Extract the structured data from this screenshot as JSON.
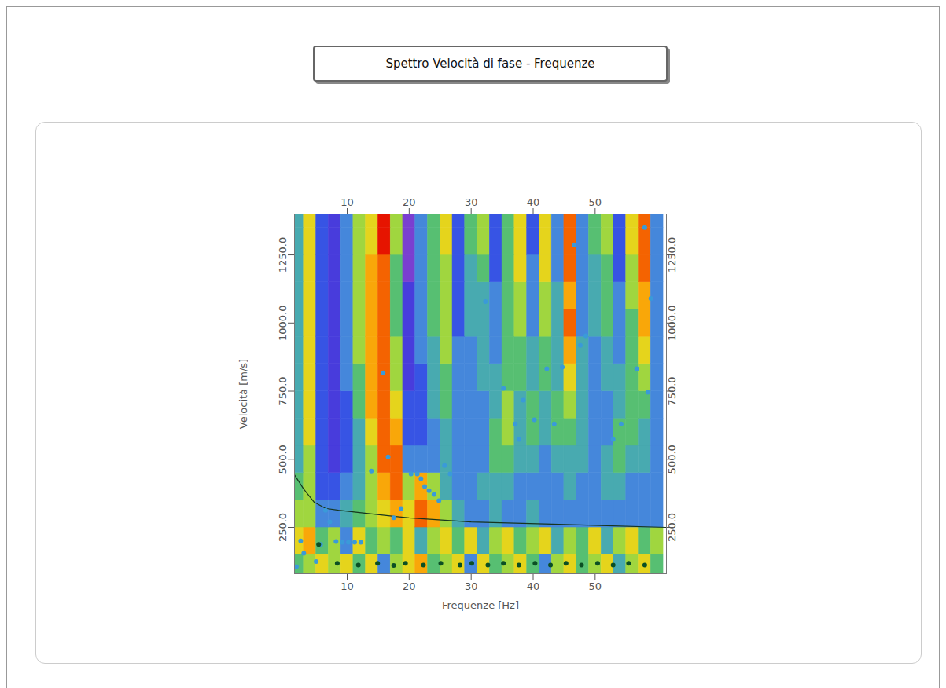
{
  "chart_data": {
    "type": "heatmap",
    "title": "Spettro Velocità di fase - Frequenze",
    "x_label": "Frequenze [Hz]",
    "y_label": "Velocità [m/s]",
    "xlim": [
      1.5,
      61.5
    ],
    "ylim": [
      80,
      1400
    ],
    "xticks": [
      10,
      20,
      30,
      40,
      50
    ],
    "yticks": [
      {
        "value": 250,
        "label": "250.0"
      },
      {
        "value": 500,
        "label": "500.0"
      },
      {
        "value": 750,
        "label": "750.0"
      },
      {
        "value": 1000,
        "label": "1000.0"
      },
      {
        "value": 1250,
        "label": "1250.0"
      }
    ],
    "cells": {
      "colors": [
        "#7a3fd0",
        "#1e32e6",
        "#5aa6e6",
        "#2fb86a",
        "#f2f21e",
        "#ff9a00",
        "#e61400"
      ],
      "frequencies": [
        2,
        4,
        6,
        8,
        10,
        12,
        14,
        16,
        18,
        20,
        22,
        24,
        26,
        28,
        30,
        32,
        34,
        36,
        38,
        40,
        42,
        44,
        46,
        48,
        50,
        52,
        54,
        56,
        58,
        60
      ],
      "velocities": [
        100,
        200,
        300,
        400,
        500,
        600,
        700,
        800,
        900,
        1000,
        1100,
        1200,
        1300,
        1400
      ],
      "values": [
        [
          5,
          6,
          7,
          6,
          7,
          5,
          7,
          3,
          6,
          7,
          8,
          5,
          6,
          7,
          3,
          7,
          5,
          6,
          7,
          5,
          3,
          6,
          7,
          5,
          6,
          7,
          4,
          6,
          7,
          5
        ],
        [
          7,
          8,
          5,
          6,
          3,
          7,
          5,
          6,
          5,
          7,
          4,
          6,
          7,
          5,
          7,
          4,
          6,
          7,
          5,
          6,
          7,
          4,
          6,
          5,
          7,
          4,
          6,
          7,
          5,
          6
        ],
        [
          6,
          6,
          3,
          3,
          4,
          5,
          6,
          7,
          8,
          7,
          9,
          8,
          6,
          4,
          3,
          3,
          4,
          3,
          3,
          4,
          3,
          3,
          3,
          3,
          3,
          3,
          3,
          3,
          3,
          3
        ],
        [
          5,
          6,
          2,
          2,
          3,
          4,
          6,
          8,
          9,
          6,
          8,
          6,
          4,
          3,
          3,
          4,
          4,
          4,
          3,
          3,
          3,
          3,
          4,
          3,
          3,
          4,
          4,
          3,
          3,
          3
        ],
        [
          4,
          6,
          2,
          1,
          2,
          4,
          6,
          9,
          9,
          3,
          3,
          3,
          4,
          3,
          3,
          3,
          5,
          5,
          4,
          4,
          3,
          4,
          4,
          4,
          3,
          4,
          5,
          4,
          4,
          3
        ],
        [
          4,
          7,
          2,
          1,
          2,
          4,
          7,
          9,
          8,
          2,
          2,
          3,
          4,
          3,
          3,
          3,
          5,
          6,
          4,
          5,
          4,
          5,
          5,
          4,
          3,
          3,
          5,
          5,
          4,
          3
        ],
        [
          4,
          7,
          2,
          1,
          2,
          5,
          8,
          9,
          7,
          2,
          2,
          4,
          5,
          3,
          3,
          3,
          4,
          6,
          4,
          5,
          4,
          5,
          6,
          4,
          3,
          3,
          4,
          5,
          5,
          3
        ],
        [
          4,
          7,
          2,
          1,
          3,
          5,
          8,
          9,
          6,
          1,
          2,
          4,
          5,
          3,
          3,
          4,
          4,
          5,
          5,
          4,
          5,
          4,
          7,
          4,
          3,
          4,
          4,
          5,
          6,
          3
        ],
        [
          4,
          7,
          2,
          1,
          3,
          6,
          8,
          9,
          6,
          1,
          3,
          4,
          6,
          3,
          3,
          4,
          3,
          5,
          5,
          4,
          5,
          4,
          8,
          4,
          3,
          4,
          3,
          5,
          7,
          3
        ],
        [
          4,
          7,
          2,
          1,
          3,
          6,
          8,
          9,
          5,
          1,
          3,
          5,
          6,
          2,
          4,
          4,
          3,
          5,
          6,
          3,
          6,
          4,
          9,
          3,
          4,
          5,
          3,
          5,
          8,
          3
        ],
        [
          4,
          7,
          2,
          1,
          3,
          6,
          8,
          9,
          5,
          1,
          3,
          5,
          6,
          2,
          4,
          4,
          3,
          5,
          6,
          3,
          6,
          4,
          8,
          3,
          4,
          5,
          3,
          6,
          8,
          3
        ],
        [
          4,
          7,
          2,
          1,
          3,
          6,
          8,
          9,
          5,
          0,
          3,
          5,
          6,
          2,
          4,
          5,
          2,
          5,
          7,
          3,
          7,
          3,
          9,
          3,
          4,
          5,
          2,
          6,
          9,
          3
        ],
        [
          4,
          7,
          2,
          1,
          3,
          6,
          7,
          10,
          6,
          0,
          3,
          5,
          7,
          2,
          5,
          6,
          2,
          5,
          7,
          2,
          7,
          3,
          9,
          3,
          5,
          6,
          2,
          7,
          9,
          3
        ],
        [
          4,
          7,
          2,
          1,
          3,
          6,
          7,
          10,
          6,
          0,
          3,
          5,
          7,
          2,
          5,
          6,
          2,
          5,
          7,
          2,
          7,
          3,
          9,
          3,
          5,
          6,
          2,
          7,
          9,
          3
        ]
      ]
    },
    "series": [
      {
        "type": "line",
        "color": "#16351e",
        "line_style": "solid",
        "x": [
          1.5,
          3,
          4.7,
          6.5,
          8.6,
          13.7,
          20,
          30,
          43,
          61.5
        ],
        "values": [
          443,
          390,
          342,
          320,
          313,
          300,
          285,
          270,
          262,
          250
        ]
      },
      {
        "type": "scatter",
        "color": "#3a9ad9",
        "marker": "circle",
        "x": [
          1.8,
          2.5,
          3,
          5,
          5.7,
          6.5,
          7.2,
          8.2,
          9.2,
          10.2,
          11.2,
          12.2,
          13.9,
          15.8,
          16.6,
          17.5,
          18.7,
          20.3,
          21.3,
          21.9,
          22.5,
          23.2,
          24,
          24.8,
          25.7,
          26.6,
          32.3,
          35.2,
          37.1,
          37.7,
          38.4,
          40.2,
          42.2,
          43.4,
          44.7,
          46.6,
          47.6,
          48.5,
          52.9,
          54.2,
          56.7,
          58.5,
          59,
          58
        ],
        "values": [
          106,
          200,
          155,
          125,
          187,
          313,
          270,
          198,
          195,
          195,
          195,
          195,
          457,
          817,
          509,
          285,
          319,
          446,
          446,
          429,
          400,
          385,
          371,
          348,
          477,
          446,
          1079,
          760,
          630,
          573,
          717,
          645,
          832,
          630,
          838,
          1287,
          918,
          953,
          573,
          630,
          832,
          746,
          1090,
          1350
        ]
      },
      {
        "type": "scatter",
        "color": "#0b4f24",
        "marker": "circle",
        "x": [
          5.4,
          8.4,
          11.8,
          14.9,
          17.5,
          19.4,
          22.3,
          25.1,
          28.2,
          30.1,
          32.7,
          35.2,
          37.7,
          40.3,
          42.8,
          45.3,
          47.8,
          50.4,
          52.9,
          55.4,
          58
        ],
        "values": [
          187,
          118,
          112,
          118,
          110,
          118,
          112,
          118,
          112,
          118,
          112,
          118,
          112,
          118,
          112,
          118,
          112,
          118,
          112,
          118,
          112
        ]
      }
    ]
  }
}
